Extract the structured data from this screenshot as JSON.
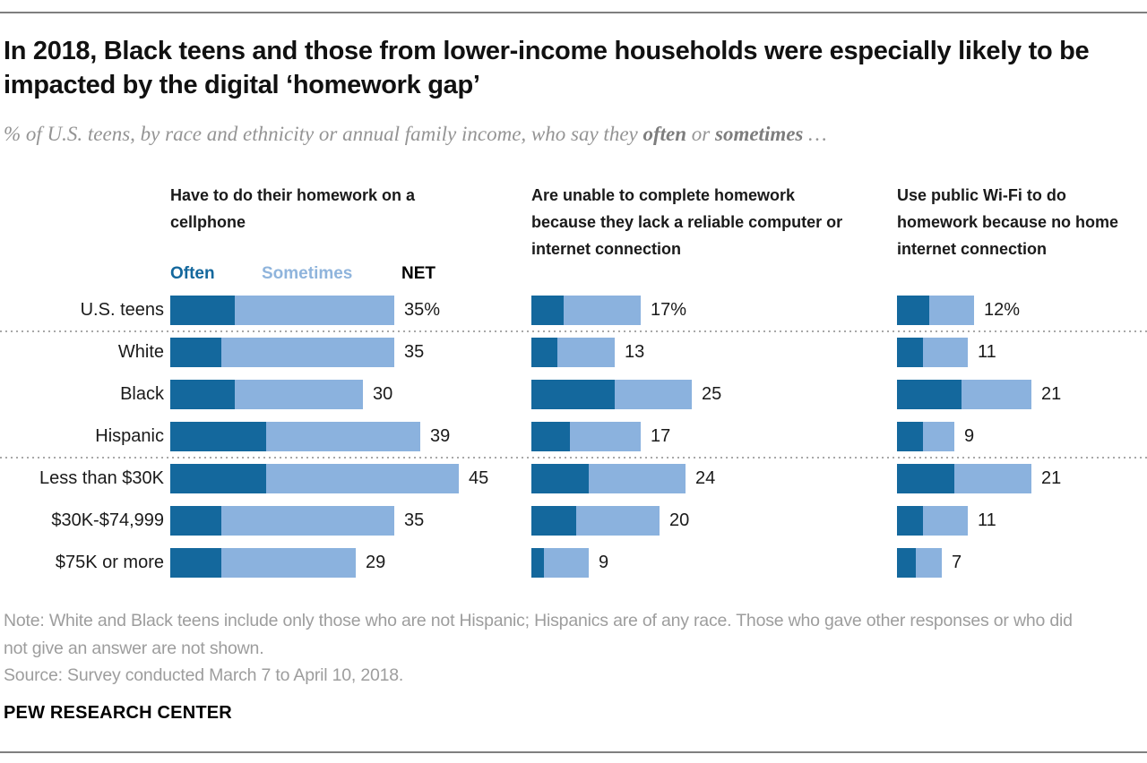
{
  "page": {
    "title": "In 2018, Black teens and those from lower-income households were especially likely to be impacted by the digital ‘homework gap’",
    "subtitle": {
      "prefix": "% of U.S. teens, by race and ethnicity or annual family income, who say they ",
      "bold1": "often",
      "mid": " or ",
      "bold2": "sometimes",
      "suffix": " …"
    },
    "note": "Note: White and Black teens include only those who are not Hispanic; Hispanics are of any race. Those who gave other responses or who did not give an answer are not shown.",
    "source": "Source: Survey conducted March 7 to April 10, 2018.",
    "brand": "PEW RESEARCH CENTER"
  },
  "chart_data": {
    "type": "bar",
    "subtype": "horizontal-stacked-small-multiples",
    "categories": [
      "U.S. teens",
      "White",
      "Black",
      "Hispanic",
      "Less than $30K",
      "$30K-$74,999",
      "$75K or more"
    ],
    "group_separators_after_rows": [
      0,
      3
    ],
    "legend": [
      {
        "label": "Often",
        "color": "#14689D"
      },
      {
        "label": "Sometimes",
        "color": "#8FB4DC"
      },
      {
        "label": "NET",
        "color": "#000000"
      }
    ],
    "axis_note": "values are % of U.S. teens; stacked segments Often + Sometimes = NET; often values estimated from bar lengths (only NET labeled)",
    "panels": [
      {
        "heading": "Have to do their homework on a cellphone",
        "net": [
          35,
          35,
          30,
          39,
          45,
          35,
          29
        ],
        "often": [
          10,
          8,
          10,
          15,
          15,
          8,
          8
        ],
        "net_labels": [
          "35%",
          "35",
          "30",
          "39",
          "45",
          "35",
          "29"
        ]
      },
      {
        "heading": "Are unable to complete homework because they lack a reliable computer or internet connection",
        "net": [
          17,
          13,
          25,
          17,
          24,
          20,
          9
        ],
        "often": [
          5,
          4,
          13,
          6,
          9,
          7,
          2
        ],
        "net_labels": [
          "17%",
          "13",
          "25",
          "17",
          "24",
          "20",
          "9"
        ]
      },
      {
        "heading": "Use public Wi-Fi to do homework because no home internet connection",
        "net": [
          12,
          11,
          21,
          9,
          21,
          11,
          7
        ],
        "often": [
          5,
          4,
          10,
          4,
          9,
          4,
          3
        ],
        "net_labels": [
          "12%",
          "11",
          "21",
          "9",
          "21",
          "11",
          "7"
        ]
      }
    ],
    "colors": {
      "often": "#14689D",
      "sometimes": "#8BB2DE"
    }
  }
}
